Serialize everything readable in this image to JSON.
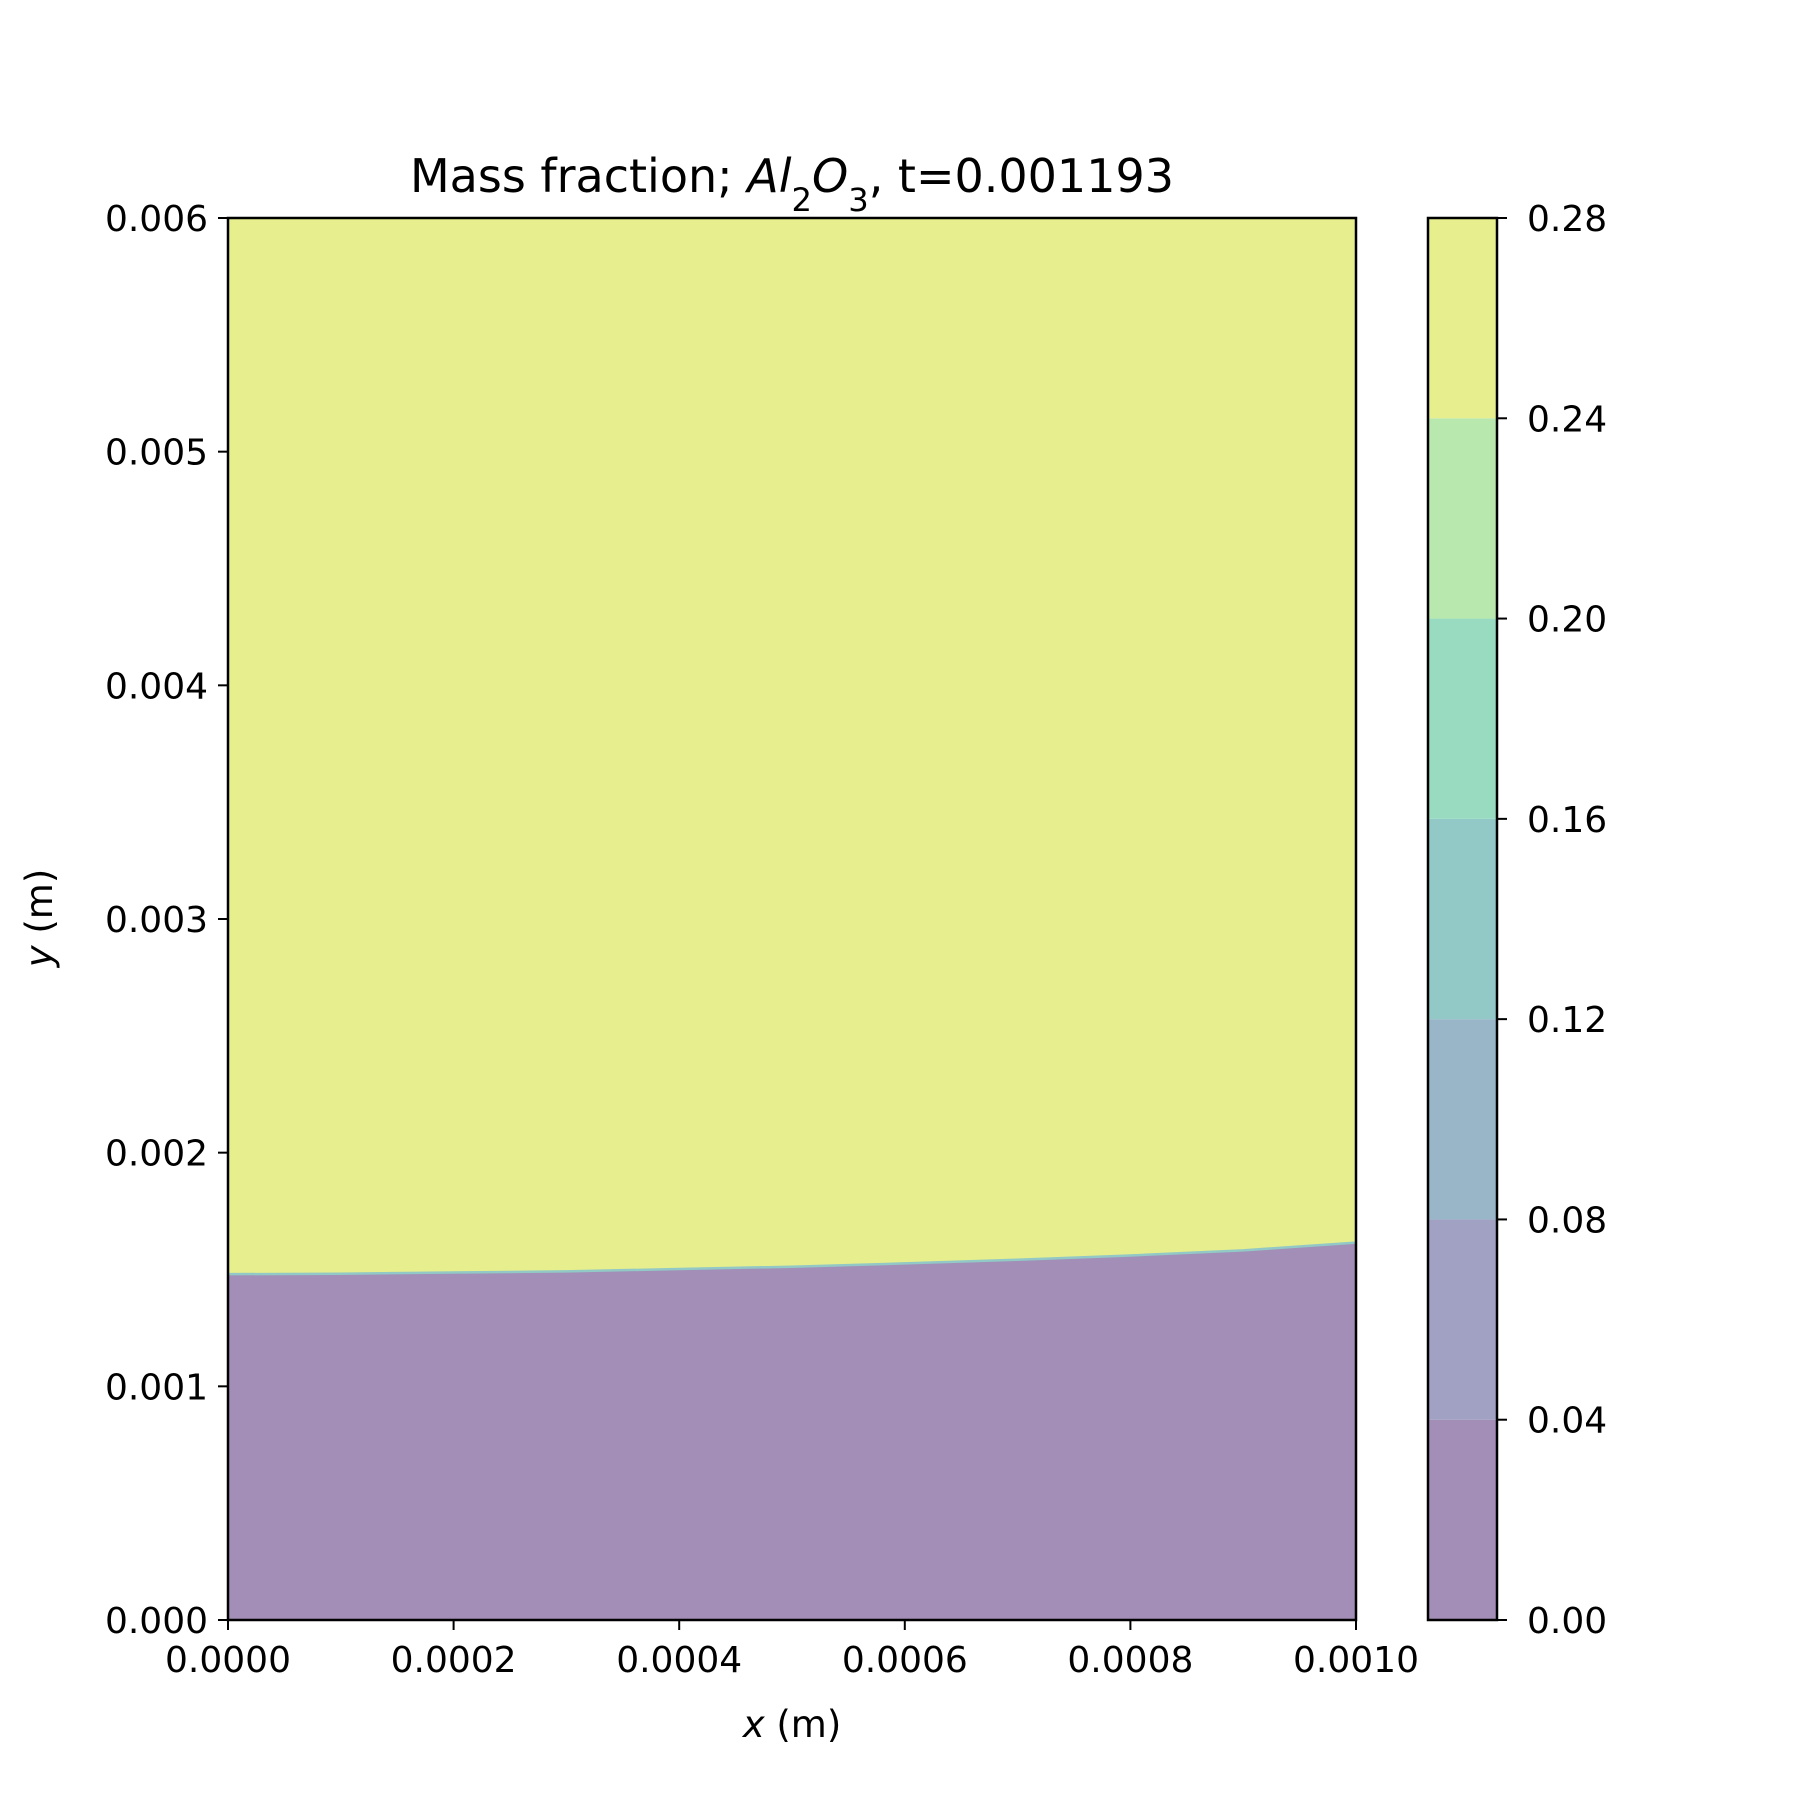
{
  "chart_data": {
    "type": "contourf",
    "title": {
      "prefix": "Mass fraction; ",
      "species_base_1": "Al",
      "species_sub_1": "2",
      "species_base_2": "O",
      "species_sub_2": "3",
      "suffix": ", t=0.001193"
    },
    "xlabel": {
      "var": "x",
      "unit": " (m)"
    },
    "ylabel": {
      "var": "y",
      "unit": " (m)"
    },
    "xlim": [
      0.0,
      0.001
    ],
    "ylim": [
      0.0,
      0.006
    ],
    "x_ticks": [
      "0.0000",
      "0.0002",
      "0.0004",
      "0.0006",
      "0.0008",
      "0.0010"
    ],
    "y_ticks": [
      "0.000",
      "0.001",
      "0.002",
      "0.003",
      "0.004",
      "0.005",
      "0.006"
    ],
    "colorbar": {
      "levels": [
        0.0,
        0.04,
        0.08,
        0.12,
        0.16,
        0.2,
        0.24,
        0.28
      ],
      "tick_labels": [
        "0.00",
        "0.04",
        "0.08",
        "0.12",
        "0.16",
        "0.20",
        "0.24",
        "0.28"
      ],
      "colors": [
        "#a28eb6",
        "#a1a1c4",
        "#98b6c8",
        "#92c8c6",
        "#99dbc1",
        "#b8e8ae",
        "#e7ee8d"
      ]
    },
    "regions": [
      {
        "name": "lower",
        "value_range": [
          0.0,
          0.04
        ],
        "color": "#a28eb6"
      },
      {
        "name": "upper",
        "value_range": [
          0.24,
          0.28
        ],
        "color": "#e7ee8d"
      }
    ],
    "interface": {
      "x": [
        0.0,
        0.0001,
        0.0002,
        0.0003,
        0.0004,
        0.0005,
        0.0006,
        0.0007,
        0.0008,
        0.0009,
        0.001
      ],
      "y": [
        0.00148,
        0.001482,
        0.001487,
        0.001492,
        0.001502,
        0.001512,
        0.001526,
        0.001542,
        0.00156,
        0.001582,
        0.001615
      ]
    },
    "grid": false
  }
}
